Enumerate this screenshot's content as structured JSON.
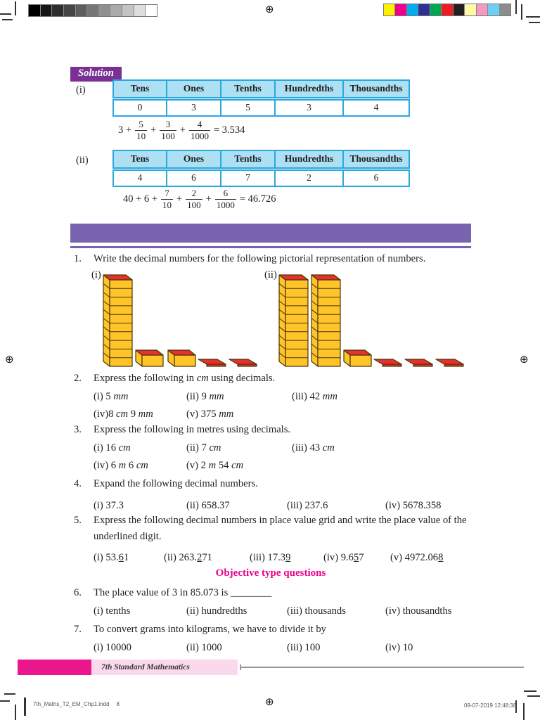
{
  "print_marks": {
    "grayscale_bar": [
      "#000000",
      "#161616",
      "#2e2e2e",
      "#464646",
      "#5e5e5e",
      "#777777",
      "#909090",
      "#aaaaaa",
      "#c4c4c4",
      "#dedede",
      "#ffffff"
    ],
    "color_bar": [
      "#FFF200",
      "#EC008C",
      "#00AEEF",
      "#2E3192",
      "#00A651",
      "#ED1C24",
      "#231F20",
      "#FFF9A8",
      "#F49AC1",
      "#6DCFF6",
      "#8C8C8C"
    ]
  },
  "accent_colors": {
    "table_border": "#29A8DF",
    "table_header_bg": "#AEE0F4",
    "banner_purple": "#7763AE",
    "solution_purple": "#7B3095",
    "heading_magenta": "#EC008C",
    "footer_pink": "#EC168C",
    "block_yellow": "#FFC42A",
    "block_red": "#E8312F"
  },
  "solution": {
    "label": "Solution",
    "items": [
      {
        "numeral": "(i)",
        "table": {
          "headers": [
            "Tens",
            "Ones",
            "Tenths",
            "Hundredths",
            "Thousandths"
          ],
          "values": [
            "0",
            "3",
            "5",
            "3",
            "4"
          ]
        },
        "equation": [
          {
            "t": "3 +"
          },
          {
            "f": [
              "5",
              "10"
            ]
          },
          {
            "t": "+"
          },
          {
            "f": [
              "3",
              "100"
            ]
          },
          {
            "t": "+"
          },
          {
            "f": [
              "4",
              "1000"
            ]
          },
          {
            "t": "= 3.534"
          }
        ]
      },
      {
        "numeral": "(ii)",
        "table": {
          "headers": [
            "Tens",
            "Ones",
            "Tenths",
            "Hundredths",
            "Thousandths"
          ],
          "values": [
            "4",
            "6",
            "7",
            "2",
            "6"
          ]
        },
        "equation": [
          {
            "t": "40 + 6 +"
          },
          {
            "f": [
              "7",
              "10"
            ]
          },
          {
            "t": "+"
          },
          {
            "f": [
              "2",
              "100"
            ]
          },
          {
            "t": "+"
          },
          {
            "f": [
              "6",
              "1000"
            ]
          },
          {
            "t": "= 46.726"
          }
        ]
      }
    ]
  },
  "exercise": {
    "objective_heading": "Objective type questions",
    "questions": [
      {
        "number": "1.",
        "text": [
          {
            "t": "Write the decimal numbers for the following pictorial representation of numbers."
          }
        ],
        "figures": [
          {
            "label": "(i)",
            "rods": 1,
            "cubes": 2,
            "flats": 2
          },
          {
            "label": "(ii)",
            "rods": 2,
            "cubes": 1,
            "flats": 3
          }
        ]
      },
      {
        "number": "2.",
        "text": [
          {
            "t": "Express the following in "
          },
          {
            "t": "cm",
            "i": 1
          },
          {
            "t": " using decimals."
          }
        ],
        "options": [
          [
            {
              "t": "(i) 5 "
            },
            {
              "t": "mm",
              "i": 1
            }
          ],
          [
            {
              "t": "(ii) 9 "
            },
            {
              "t": "mm",
              "i": 1
            }
          ],
          [
            {
              "t": "(iii) 42 "
            },
            {
              "t": "mm",
              "i": 1
            }
          ],
          [
            {
              "t": "(iv)8 "
            },
            {
              "t": "cm",
              "i": 1
            },
            {
              "t": " 9 "
            },
            {
              "t": "mm",
              "i": 1
            }
          ],
          [
            {
              "t": "(v) 375 "
            },
            {
              "t": "mm",
              "i": 1
            }
          ]
        ]
      },
      {
        "number": "3.",
        "text": [
          {
            "t": "Express the following in metres using decimals."
          }
        ],
        "options": [
          [
            {
              "t": "(i) 16 "
            },
            {
              "t": "cm",
              "i": 1
            }
          ],
          [
            {
              "t": "(ii) 7 "
            },
            {
              "t": "cm",
              "i": 1
            }
          ],
          [
            {
              "t": "(iii) 43 "
            },
            {
              "t": "cm",
              "i": 1
            }
          ],
          [
            {
              "t": "(iv) 6 "
            },
            {
              "t": "m",
              "i": 1
            },
            {
              "t": " 6 "
            },
            {
              "t": "cm",
              "i": 1
            }
          ],
          [
            {
              "t": "(v) 2 "
            },
            {
              "t": "m",
              "i": 1
            },
            {
              "t": " 54 "
            },
            {
              "t": "cm",
              "i": 1
            }
          ]
        ]
      },
      {
        "number": "4.",
        "text": [
          {
            "t": "Expand the following decimal numbers."
          }
        ],
        "options": [
          [
            {
              "t": "(i) 37.3"
            }
          ],
          [
            {
              "t": "(ii) 658.37"
            }
          ],
          [
            {
              "t": "(iii) 237.6"
            }
          ],
          [
            {
              "t": "(iv) 5678.358"
            }
          ]
        ]
      },
      {
        "number": "5.",
        "text": [
          {
            "t": "Express the following decimal numbers in place value grid and write the place value of the underlined digit."
          }
        ],
        "options": [
          [
            {
              "t": "(i) 53."
            },
            {
              "t": "6",
              "u": 1
            },
            {
              "t": "1"
            }
          ],
          [
            {
              "t": "(ii) 263."
            },
            {
              "t": "2",
              "u": 1
            },
            {
              "t": "71"
            }
          ],
          [
            {
              "t": "(iii) 17.3"
            },
            {
              "t": "9",
              "u": 1
            }
          ],
          [
            {
              "t": "(iv) 9.6"
            },
            {
              "t": "5",
              "u": 1
            },
            {
              "t": "7"
            }
          ],
          [
            {
              "t": "(v) 4972.06"
            },
            {
              "t": "8",
              "u": 1
            }
          ]
        ]
      },
      {
        "number": "6.",
        "text": [
          {
            "t": "The place value of 3 in 85.073 is ________"
          }
        ],
        "options": [
          [
            {
              "t": "(i) tenths"
            }
          ],
          [
            {
              "t": "(ii) hundredths"
            }
          ],
          [
            {
              "t": "(iii) thousands"
            }
          ],
          [
            {
              "t": "(iv) thousandths"
            }
          ]
        ]
      },
      {
        "number": "7.",
        "text": [
          {
            "t": "To convert grams into kilograms, we have to divide it by"
          }
        ],
        "options": [
          [
            {
              "t": "(i) 10000"
            }
          ],
          [
            {
              "t": "(ii) 1000"
            }
          ],
          [
            {
              "t": "(iii) 100"
            }
          ],
          [
            {
              "t": "(iv) 10"
            }
          ]
        ]
      }
    ]
  },
  "footer": {
    "book_title": "7th Standard Mathematics",
    "file_name": "7th_Maths_T2_EM_Chp1.indd",
    "page_number": "8",
    "timestamp": "09-07-2019   12:48:38"
  }
}
